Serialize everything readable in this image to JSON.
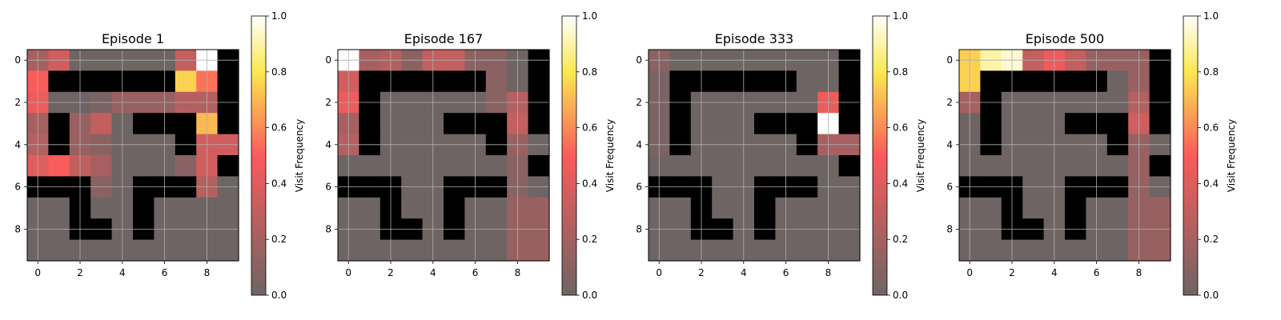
{
  "chart_data": [
    {
      "type": "heatmap",
      "title": "Episode 1",
      "x_ticks": [
        "0",
        "2",
        "4",
        "6",
        "8"
      ],
      "y_ticks": [
        "0",
        "2",
        "4",
        "6",
        "8"
      ],
      "grid": true,
      "colorbar": {
        "label": "Visit Frequency",
        "ticks": [
          "0.0",
          "0.2",
          "0.4",
          "0.6",
          "0.8",
          "1.0"
        ],
        "range": [
          0,
          1
        ]
      },
      "walls": [
        [
          0,
          9
        ],
        [
          1,
          1
        ],
        [
          1,
          2
        ],
        [
          1,
          3
        ],
        [
          1,
          4
        ],
        [
          1,
          5
        ],
        [
          1,
          6
        ],
        [
          1,
          9
        ],
        [
          2,
          9
        ],
        [
          3,
          1
        ],
        [
          3,
          5
        ],
        [
          3,
          6
        ],
        [
          3,
          7
        ],
        [
          3,
          9
        ],
        [
          4,
          1
        ],
        [
          4,
          7
        ],
        [
          5,
          9
        ],
        [
          6,
          0
        ],
        [
          6,
          1
        ],
        [
          6,
          2
        ],
        [
          6,
          5
        ],
        [
          6,
          6
        ],
        [
          6,
          7
        ],
        [
          7,
          2
        ],
        [
          7,
          5
        ],
        [
          8,
          2
        ],
        [
          8,
          3
        ],
        [
          8,
          5
        ]
      ],
      "visits": [
        [
          0.2,
          0.35,
          0,
          0,
          0,
          0,
          0,
          0.3,
          1.0,
          0
        ],
        [
          0.5,
          0,
          0,
          0,
          0,
          0,
          0,
          0.75,
          0.55,
          0
        ],
        [
          0.45,
          0,
          0,
          0.05,
          0.15,
          0.15,
          0.15,
          0.25,
          0.25,
          0
        ],
        [
          0.2,
          0,
          0.15,
          0.3,
          0,
          0,
          0,
          0,
          0.7,
          0
        ],
        [
          0.25,
          0,
          0.15,
          0.1,
          0,
          0,
          0,
          0,
          0.35,
          0.35
        ],
        [
          0.4,
          0.5,
          0.3,
          0.2,
          0,
          0,
          0,
          0.1,
          0.35,
          0
        ],
        [
          0,
          0,
          0,
          0.1,
          0,
          0,
          0,
          0,
          0.25,
          0
        ],
        [
          0,
          0,
          0,
          0,
          0,
          0,
          0,
          0,
          0,
          0
        ],
        [
          0,
          0,
          0,
          0,
          0,
          0,
          0,
          0,
          0,
          0
        ],
        [
          0,
          0,
          0,
          0,
          0,
          0,
          0,
          0,
          0,
          0
        ]
      ]
    },
    {
      "type": "heatmap",
      "title": "Episode 167",
      "x_ticks": [
        "0",
        "2",
        "4",
        "6",
        "8"
      ],
      "y_ticks": [
        "0",
        "2",
        "4",
        "6",
        "8"
      ],
      "grid": true,
      "colorbar": {
        "label": "Visit Frequency",
        "ticks": [
          "0.0",
          "0.2",
          "0.4",
          "0.6",
          "0.8",
          "1.0"
        ],
        "range": [
          0,
          1
        ]
      },
      "walls": [
        [
          0,
          9
        ],
        [
          1,
          1
        ],
        [
          1,
          2
        ],
        [
          1,
          3
        ],
        [
          1,
          4
        ],
        [
          1,
          5
        ],
        [
          1,
          6
        ],
        [
          1,
          9
        ],
        [
          2,
          1
        ],
        [
          2,
          9
        ],
        [
          3,
          1
        ],
        [
          3,
          5
        ],
        [
          3,
          6
        ],
        [
          3,
          7
        ],
        [
          3,
          9
        ],
        [
          4,
          1
        ],
        [
          4,
          7
        ],
        [
          5,
          9
        ],
        [
          6,
          0
        ],
        [
          6,
          1
        ],
        [
          6,
          2
        ],
        [
          6,
          5
        ],
        [
          6,
          6
        ],
        [
          6,
          7
        ],
        [
          7,
          2
        ],
        [
          7,
          5
        ],
        [
          8,
          2
        ],
        [
          8,
          3
        ],
        [
          8,
          5
        ]
      ],
      "visits": [
        [
          1.0,
          0.2,
          0.25,
          0.1,
          0.3,
          0.3,
          0.1,
          0.1,
          0,
          0
        ],
        [
          0.35,
          0,
          0,
          0,
          0,
          0,
          0,
          0.1,
          0,
          0
        ],
        [
          0.45,
          0,
          0,
          0,
          0,
          0,
          0,
          0.1,
          0.25,
          0
        ],
        [
          0.2,
          0,
          0,
          0,
          0,
          0,
          0,
          0,
          0.3,
          0
        ],
        [
          0.25,
          0,
          0,
          0,
          0,
          0,
          0,
          0,
          0.15,
          0
        ],
        [
          0,
          0,
          0,
          0,
          0,
          0,
          0,
          0,
          0.1,
          0
        ],
        [
          0,
          0,
          0,
          0,
          0,
          0,
          0,
          0,
          0.1,
          0
        ],
        [
          0,
          0,
          0,
          0,
          0,
          0,
          0,
          0,
          0.15,
          0.15
        ],
        [
          0,
          0,
          0,
          0,
          0,
          0,
          0,
          0,
          0.15,
          0.15
        ],
        [
          0,
          0,
          0,
          0,
          0,
          0,
          0,
          0,
          0.15,
          0.15
        ]
      ]
    },
    {
      "type": "heatmap",
      "title": "Episode 333",
      "x_ticks": [
        "0",
        "2",
        "4",
        "6",
        "8"
      ],
      "y_ticks": [
        "0",
        "2",
        "4",
        "6",
        "8"
      ],
      "grid": true,
      "colorbar": {
        "label": "Visit Frequency",
        "ticks": [
          "0.0",
          "0.2",
          "0.4",
          "0.6",
          "0.8",
          "1.0"
        ],
        "range": [
          0,
          1
        ]
      },
      "walls": [
        [
          0,
          9
        ],
        [
          1,
          1
        ],
        [
          1,
          2
        ],
        [
          1,
          3
        ],
        [
          1,
          4
        ],
        [
          1,
          5
        ],
        [
          1,
          6
        ],
        [
          1,
          9
        ],
        [
          2,
          1
        ],
        [
          2,
          9
        ],
        [
          3,
          1
        ],
        [
          3,
          5
        ],
        [
          3,
          6
        ],
        [
          3,
          7
        ],
        [
          3,
          9
        ],
        [
          4,
          1
        ],
        [
          4,
          7
        ],
        [
          5,
          9
        ],
        [
          6,
          0
        ],
        [
          6,
          1
        ],
        [
          6,
          2
        ],
        [
          6,
          5
        ],
        [
          6,
          6
        ],
        [
          6,
          7
        ],
        [
          7,
          2
        ],
        [
          7,
          5
        ],
        [
          8,
          2
        ],
        [
          8,
          3
        ],
        [
          8,
          5
        ]
      ],
      "visits": [
        [
          0.1,
          0,
          0,
          0,
          0,
          0,
          0,
          0,
          0,
          0
        ],
        [
          0.05,
          0,
          0,
          0,
          0,
          0,
          0,
          0,
          0,
          0
        ],
        [
          0.05,
          0,
          0,
          0,
          0,
          0,
          0,
          0,
          0.45,
          0
        ],
        [
          0.05,
          0,
          0,
          0,
          0,
          0,
          0,
          0,
          1.0,
          0
        ],
        [
          0.05,
          0,
          0,
          0,
          0,
          0,
          0,
          0,
          0.2,
          0.2
        ],
        [
          0,
          0,
          0,
          0,
          0,
          0,
          0,
          0,
          0,
          0
        ],
        [
          0,
          0,
          0,
          0,
          0,
          0,
          0,
          0,
          0,
          0
        ],
        [
          0,
          0,
          0,
          0,
          0,
          0,
          0,
          0,
          0,
          0
        ],
        [
          0,
          0,
          0,
          0,
          0,
          0,
          0,
          0,
          0,
          0
        ],
        [
          0,
          0,
          0,
          0,
          0,
          0,
          0,
          0,
          0,
          0
        ]
      ]
    },
    {
      "type": "heatmap",
      "title": "Episode 500",
      "x_ticks": [
        "0",
        "2",
        "4",
        "6",
        "8"
      ],
      "y_ticks": [
        "0",
        "2",
        "4",
        "6",
        "8"
      ],
      "grid": true,
      "colorbar": {
        "label": "Visit Frequency",
        "ticks": [
          "0.0",
          "0.2",
          "0.4",
          "0.6",
          "0.8",
          "1.0"
        ],
        "range": [
          0,
          1
        ]
      },
      "walls": [
        [
          0,
          9
        ],
        [
          1,
          1
        ],
        [
          1,
          2
        ],
        [
          1,
          3
        ],
        [
          1,
          4
        ],
        [
          1,
          5
        ],
        [
          1,
          6
        ],
        [
          1,
          9
        ],
        [
          2,
          1
        ],
        [
          2,
          9
        ],
        [
          3,
          1
        ],
        [
          3,
          5
        ],
        [
          3,
          6
        ],
        [
          3,
          7
        ],
        [
          3,
          9
        ],
        [
          4,
          1
        ],
        [
          4,
          7
        ],
        [
          5,
          9
        ],
        [
          6,
          0
        ],
        [
          6,
          1
        ],
        [
          6,
          2
        ],
        [
          6,
          5
        ],
        [
          6,
          6
        ],
        [
          6,
          7
        ],
        [
          7,
          2
        ],
        [
          7,
          5
        ],
        [
          8,
          2
        ],
        [
          8,
          3
        ],
        [
          8,
          5
        ]
      ],
      "visits": [
        [
          0.75,
          0.9,
          0.95,
          0.3,
          0.45,
          0.3,
          0.15,
          0.15,
          0.15,
          0
        ],
        [
          0.75,
          0,
          0,
          0,
          0,
          0,
          0,
          0,
          0.15,
          0
        ],
        [
          0.2,
          0,
          0,
          0,
          0,
          0,
          0,
          0,
          0.25,
          0
        ],
        [
          0,
          0,
          0,
          0,
          0,
          0,
          0,
          0,
          0.35,
          0
        ],
        [
          0,
          0,
          0,
          0,
          0,
          0,
          0,
          0,
          0.15,
          0
        ],
        [
          0,
          0,
          0,
          0,
          0,
          0,
          0,
          0,
          0.15,
          0
        ],
        [
          0,
          0,
          0,
          0,
          0,
          0,
          0,
          0,
          0.15,
          0
        ],
        [
          0,
          0,
          0,
          0,
          0,
          0,
          0,
          0,
          0.15,
          0.15
        ],
        [
          0,
          0,
          0,
          0,
          0,
          0,
          0,
          0,
          0.15,
          0.15
        ],
        [
          0,
          0,
          0,
          0,
          0,
          0,
          0,
          0,
          0.15,
          0.15
        ]
      ]
    }
  ]
}
